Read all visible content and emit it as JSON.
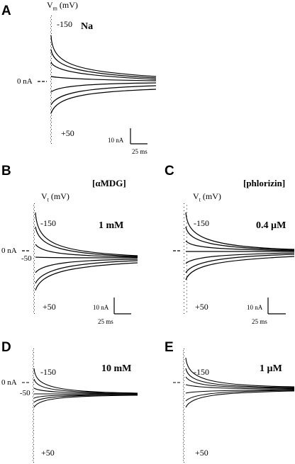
{
  "panels": {
    "A": {
      "letter": "A",
      "ion": "Na",
      "axis_label_main": "V",
      "axis_label_sub": "m",
      "axis_label_unit": " (mV)",
      "v_top": "-150",
      "v_bottom": "+50",
      "zero": "0 nA",
      "scale_current": "10 nA",
      "scale_time": "25 ms"
    },
    "B": {
      "letter": "B",
      "compound": "[αMDG]",
      "concentration": "1 mM",
      "axis_label_main": "V",
      "axis_label_sub": "t",
      "axis_label_unit": " (mV)",
      "v_top": "-150",
      "v_hold": "-50",
      "v_bottom": "+50",
      "zero": "0 nA",
      "scale_current": "10 nA",
      "scale_time": "25 ms"
    },
    "C": {
      "letter": "C",
      "compound": "[phlorizin]",
      "concentration": "0.4 µM",
      "axis_label_main": "V",
      "axis_label_sub": "t",
      "axis_label_unit": " (mV)",
      "v_top": "-150",
      "v_bottom": "+50",
      "scale_current": "10 nA",
      "scale_time": "25 ms"
    },
    "D": {
      "letter": "D",
      "concentration": "10 mM",
      "v_top": "-150",
      "v_hold": "-50",
      "v_bottom": "+50",
      "zero": "0 nA"
    },
    "E": {
      "letter": "E",
      "concentration": "1 µM",
      "v_top": "-150",
      "v_bottom": "+50"
    }
  }
}
